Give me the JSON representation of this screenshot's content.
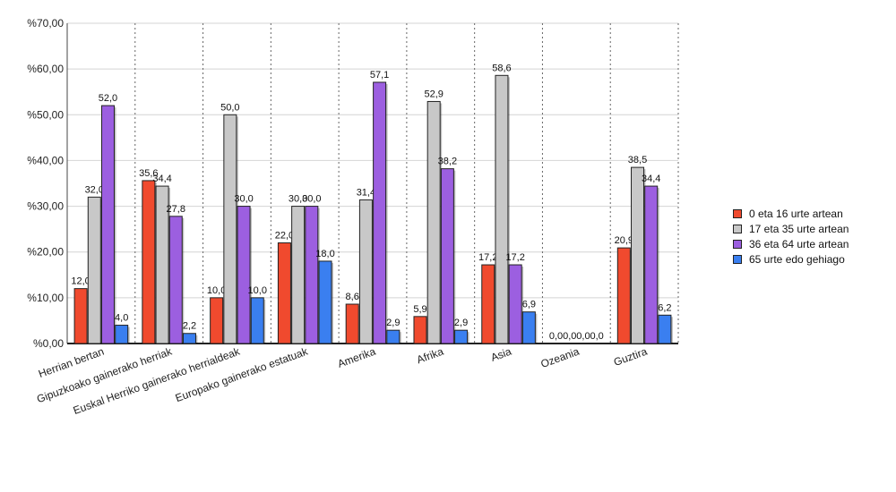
{
  "chart_data": {
    "type": "bar",
    "categories": [
      "Herrian bertan",
      "Gipuzkoako gainerako herriak",
      "Euskal Herriko gainerako herrialdeak",
      "Europako gainerako estatuak",
      "Amerika",
      "Afrika",
      "Asia",
      "Ozeania",
      "Guztira"
    ],
    "series": [
      {
        "name": "0 eta 16 urte artean",
        "color": "#f04a2e",
        "values": [
          12.0,
          35.6,
          10.0,
          22.0,
          8.6,
          5.9,
          17.2,
          0.0,
          20.9
        ],
        "labels": [
          "12,0",
          "35,6",
          "10,0",
          "22,0",
          "8,6",
          "5,9",
          "17,2",
          "0,0",
          "20,9"
        ]
      },
      {
        "name": "17 eta 35 urte artean",
        "color": "#c8c8c8",
        "values": [
          32.0,
          34.4,
          50.0,
          30.0,
          31.4,
          52.9,
          58.6,
          0.0,
          38.5
        ],
        "labels": [
          "32,0",
          "34,4",
          "50,0",
          "30,0",
          "31,4",
          "52,9",
          "58,6",
          "0,0",
          "38,5"
        ]
      },
      {
        "name": "36 eta 64 urte artean",
        "color": "#9c5fe0",
        "values": [
          52.0,
          27.8,
          30.0,
          30.0,
          57.1,
          38.2,
          17.2,
          0.0,
          34.4
        ],
        "labels": [
          "52,0",
          "27,8",
          "30,0",
          "30,0",
          "57,1",
          "38,2",
          "17,2",
          "0,0",
          "34,4"
        ]
      },
      {
        "name": "65 urte edo gehiago",
        "color": "#3a7ff0",
        "values": [
          4.0,
          2.2,
          10.0,
          18.0,
          2.9,
          2.9,
          6.9,
          0.0,
          6.2
        ],
        "labels": [
          "4,0",
          "2,2",
          "10,0",
          "18,0",
          "2,9",
          "2,9",
          "6,9",
          "0,0",
          "6,2"
        ]
      }
    ],
    "ylim": [
      0,
      70
    ],
    "yticks": [
      0,
      10,
      20,
      30,
      40,
      50,
      60,
      70
    ],
    "ytick_labels": [
      "%0,00",
      "%10,00",
      "%20,00",
      "%30,00",
      "%40,00",
      "%50,00",
      "%60,00",
      "%70,00"
    ],
    "grid": true,
    "legend_position": "right"
  }
}
